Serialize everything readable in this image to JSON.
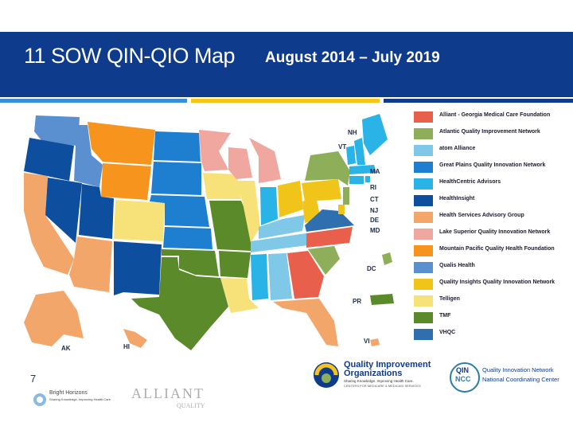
{
  "header": {
    "title": "11 SOW QIN-QIO Map",
    "date_range": "August  2014 – July 2019",
    "bar_color": "#0f3b8c",
    "accent_colors": [
      "#3a8fd6",
      "#f5c518",
      "#0f3b8c"
    ]
  },
  "legend": [
    {
      "label": "Alliant - Georgia Medical Care Foundation",
      "color": "#e8604c"
    },
    {
      "label": "Atlantic Quality Improvement Network",
      "color": "#8fae5a"
    },
    {
      "label": "atom Alliance",
      "color": "#7fc8e8"
    },
    {
      "label": "Great Plains Quality Innovation Network",
      "color": "#1e7fd0"
    },
    {
      "label": "HealthCentric Advisors",
      "color": "#2ab3e6"
    },
    {
      "label": "HealthInsight",
      "color": "#0d4f9e"
    },
    {
      "label": "Health Services Advisory Group",
      "color": "#f2a66a"
    },
    {
      "label": "Lake Superior Quality Innovation Network",
      "color": "#f0a7a0"
    },
    {
      "label": "Mountain Pacific Quality Health Foundation",
      "color": "#f7941d"
    },
    {
      "label": "Qualis Health",
      "color": "#5a8fd0"
    },
    {
      "label": "Quality Insights Quality Innovation Network",
      "color": "#f0c419"
    },
    {
      "label": "Telligen",
      "color": "#f7e27a"
    },
    {
      "label": "TMF",
      "color": "#5a8a2a"
    },
    {
      "label": "VHQC",
      "color": "#2f6fb0"
    }
  ],
  "map_labels": {
    "nh": "NH",
    "vt": "VT",
    "ma": "MA",
    "ri": "RI",
    "ct": "CT",
    "nj": "NJ",
    "de": "DE",
    "md": "MD",
    "dc": "DC",
    "pr": "PR",
    "vi": "VI",
    "ak": "AK",
    "hi": "HI"
  },
  "footer": {
    "slide_number": "7",
    "qio_line1": "Quality Improvement",
    "qio_line2": "Organizations",
    "qio_tagline": "Sharing Knowledge. Improving Health Care.",
    "qio_subline": "CENTERS FOR MEDICARE & MEDICAID SERVICES",
    "ncc_badge_1": "QIN",
    "ncc_badge_2": "NCC",
    "ncc_name_1": "Quality Innovation Network",
    "ncc_name_2": "National Coordinating Center",
    "faded_logo_1": "Bright Horizons",
    "faded_logo_1_sub": "Sharing Knowledge. Improving Health Care.",
    "faded_logo_2": "ALLIANT",
    "faded_logo_2_sub": "QUALITY"
  }
}
